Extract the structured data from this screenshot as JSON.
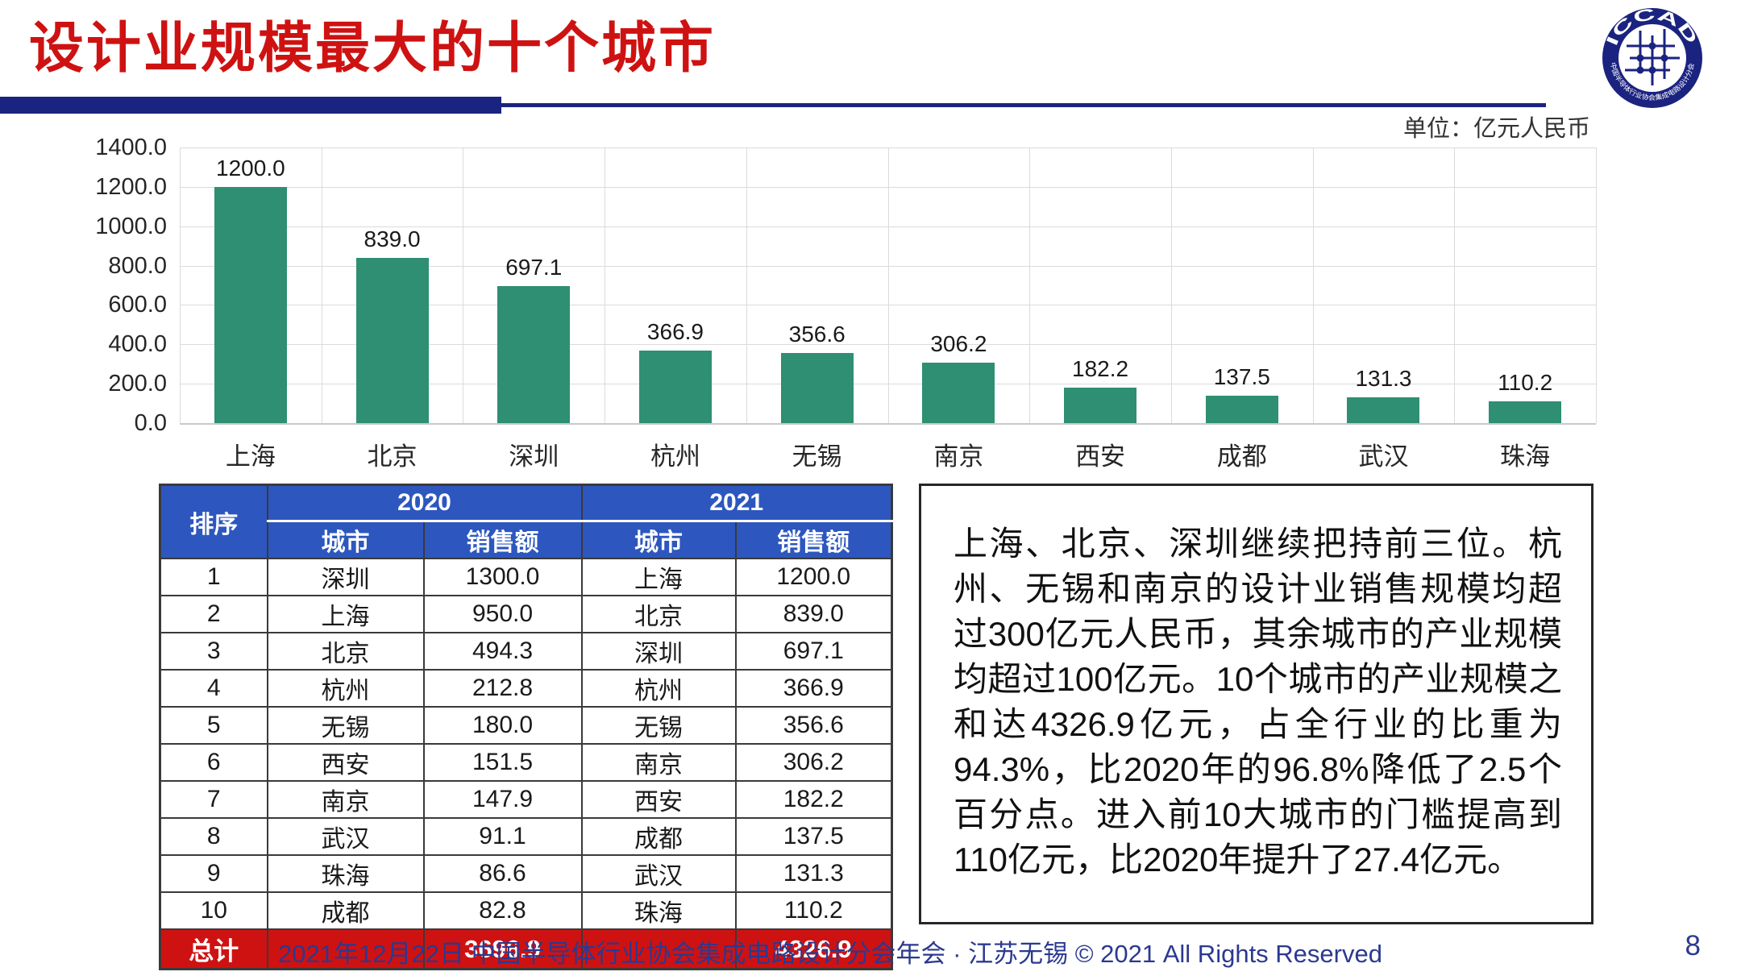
{
  "title": "设计业规模最大的十个城市",
  "unit_label": "单位：亿元人民币",
  "logo": {
    "top_text": "ICCAD",
    "bottom_text": "中国半导体行业协会集成电路设计分会"
  },
  "chart_data": {
    "type": "bar",
    "categories": [
      "上海",
      "北京",
      "深圳",
      "杭州",
      "无锡",
      "南京",
      "西安",
      "成都",
      "武汉",
      "珠海"
    ],
    "values": [
      1200.0,
      839.0,
      697.1,
      366.9,
      356.6,
      306.2,
      182.2,
      137.5,
      131.3,
      110.2
    ],
    "value_labels": [
      "1200.0",
      "839.0",
      "697.1",
      "366.9",
      "356.6",
      "306.2",
      "182.2",
      "137.5",
      "131.3",
      "110.2"
    ],
    "title": "",
    "xlabel": "",
    "ylabel": "",
    "ylim": [
      0,
      1400
    ],
    "ytick_labels": [
      "1400.0",
      "1200.0",
      "1000.0",
      "800.0",
      "600.0",
      "400.0",
      "200.0",
      "0.0"
    ],
    "grid": true,
    "legend": false,
    "bar_color": "#2E8F72"
  },
  "table": {
    "rank_header": "排序",
    "year_2020_header": "2020",
    "year_2021_header": "2021",
    "city_header_2020": "城市",
    "sales_header_2020": "销售额",
    "city_header_2021": "城市",
    "sales_header_2021": "销售额",
    "rows": [
      {
        "rank": "1",
        "c20": "深圳",
        "s20": "1300.0",
        "c21": "上海",
        "s21": "1200.0"
      },
      {
        "rank": "2",
        "c20": "上海",
        "s20": "950.0",
        "c21": "北京",
        "s21": "839.0"
      },
      {
        "rank": "3",
        "c20": "北京",
        "s20": "494.3",
        "c21": "深圳",
        "s21": "697.1"
      },
      {
        "rank": "4",
        "c20": "杭州",
        "s20": "212.8",
        "c21": "杭州",
        "s21": "366.9"
      },
      {
        "rank": "5",
        "c20": "无锡",
        "s20": "180.0",
        "c21": "无锡",
        "s21": "356.6"
      },
      {
        "rank": "6",
        "c20": "西安",
        "s20": "151.5",
        "c21": "南京",
        "s21": "306.2"
      },
      {
        "rank": "7",
        "c20": "南京",
        "s20": "147.9",
        "c21": "西安",
        "s21": "182.2"
      },
      {
        "rank": "8",
        "c20": "武汉",
        "s20": "91.1",
        "c21": "成都",
        "s21": "137.5"
      },
      {
        "rank": "9",
        "c20": "珠海",
        "s20": "86.6",
        "c21": "武汉",
        "s21": "131.3"
      },
      {
        "rank": "10",
        "c20": "成都",
        "s20": "82.8",
        "c21": "珠海",
        "s21": "110.2"
      }
    ],
    "total_label": "总计",
    "total_2020": "3696.9",
    "total_2021": "4326.9"
  },
  "commentary": "上海、北京、深圳继续把持前三位。杭州、无锡和南京的设计业销售规模均超过300亿元人民币，其余城市的产业规模均超过100亿元。10个城市的产业规模之和达4326.9亿元，占全行业的比重为94.3%，比2020年的96.8%降低了2.5个百分点。进入前10大城市的门槛提高到110亿元，比2020年提升了27.4亿元。",
  "footer": {
    "text": "2021年12月22日 中国半导体行业协会集成电路设计分会年会 · 江苏无锡 © 2021 All Rights Reserved",
    "page_number": "8"
  },
  "colors": {
    "accent_red": "#CE1212",
    "navy": "#1B2380",
    "table_header_blue": "#2D57BF",
    "total_row_red": "#CE1212",
    "bar_teal": "#2E8F72",
    "footer_navy": "#2B3990",
    "grid_gray": "#DBDBDB"
  }
}
